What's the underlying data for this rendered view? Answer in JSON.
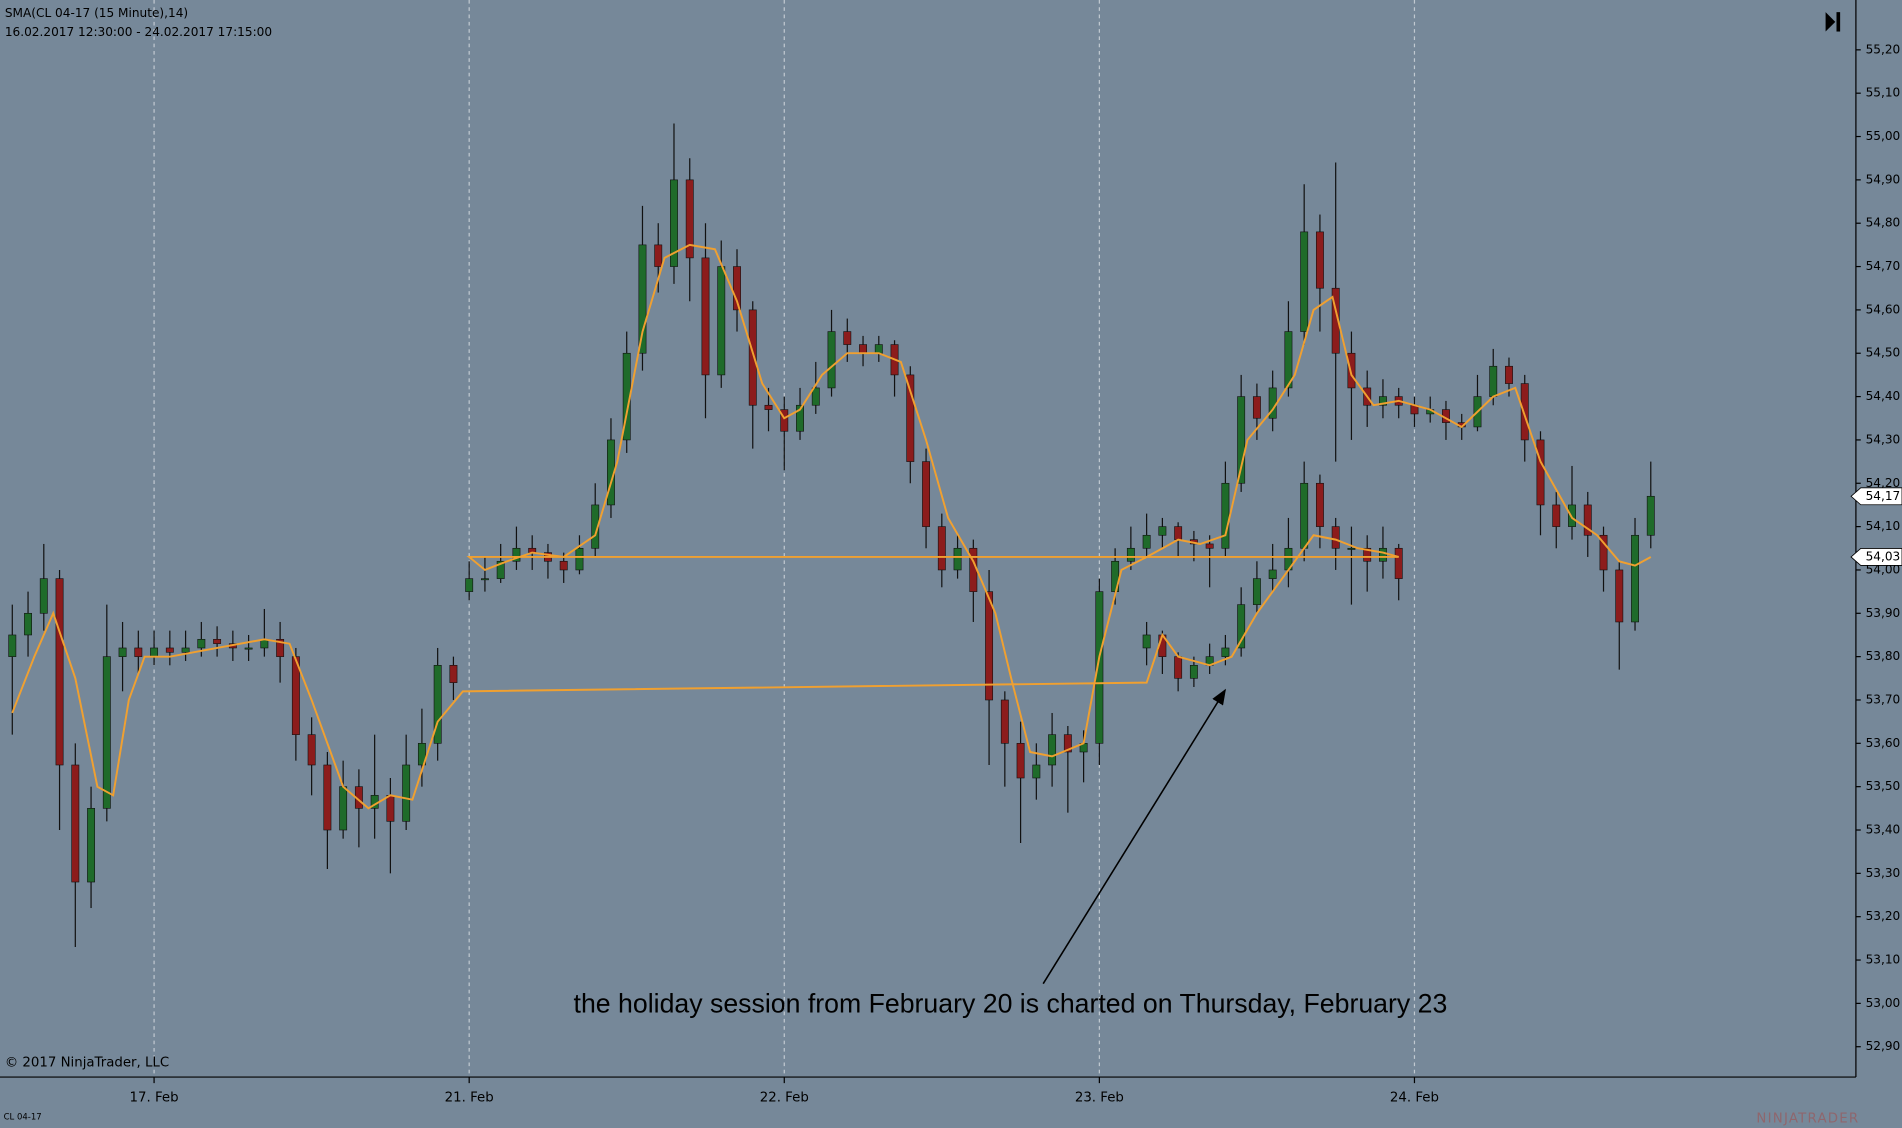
{
  "chart_data": {
    "type": "candlestick",
    "title": "SMA(CL 04-17 (15 Minute),14)",
    "subtitle": "16.02.2017 12:30:00 - 24.02.2017 17:15:00",
    "copyright": "© 2017 NinjaTrader, LLC",
    "instrument": "CL 04-17",
    "logo": "NINJATRADER",
    "annotation": "the holiday session from February 20 is charted on Thursday, February 23",
    "xlim": [
      0.511,
      6.401
    ],
    "ylim": [
      52.83,
      55.315
    ],
    "xticks": [
      {
        "value": 1,
        "label": "17. Feb"
      },
      {
        "value": 2,
        "label": "21. Feb"
      },
      {
        "value": 3,
        "label": "22. Feb"
      },
      {
        "value": 4,
        "label": "23. Feb"
      },
      {
        "value": 5,
        "label": "24. Feb"
      }
    ],
    "yticks": [
      {
        "value": 55.2,
        "label": "55,20"
      },
      {
        "value": 55.1,
        "label": "55,10"
      },
      {
        "value": 55.0,
        "label": "55,00"
      },
      {
        "value": 54.9,
        "label": "54,90"
      },
      {
        "value": 54.8,
        "label": "54,80"
      },
      {
        "value": 54.7,
        "label": "54,70"
      },
      {
        "value": 54.6,
        "label": "54,60"
      },
      {
        "value": 54.5,
        "label": "54,50"
      },
      {
        "value": 54.4,
        "label": "54,40"
      },
      {
        "value": 54.3,
        "label": "54,30"
      },
      {
        "value": 54.2,
        "label": "54,20"
      },
      {
        "value": 54.1,
        "label": "54,10"
      },
      {
        "value": 54.0,
        "label": "54,00"
      },
      {
        "value": 53.9,
        "label": "53,90"
      },
      {
        "value": 53.8,
        "label": "53,80"
      },
      {
        "value": 53.7,
        "label": "53,70"
      },
      {
        "value": 53.6,
        "label": "53,60"
      },
      {
        "value": 53.5,
        "label": "53,50"
      },
      {
        "value": 53.4,
        "label": "53,40"
      },
      {
        "value": 53.3,
        "label": "53,30"
      },
      {
        "value": 53.2,
        "label": "53,20"
      },
      {
        "value": 53.1,
        "label": "53,10"
      },
      {
        "value": 53.0,
        "label": "53,00"
      },
      {
        "value": 52.9,
        "label": "52,90"
      }
    ],
    "up_color": "#1f6b2a",
    "down_color": "#8c1c1c",
    "wick_color": "#111111",
    "series": [
      {
        "x": [
          0.55,
          0.6,
          0.65,
          0.7,
          0.75,
          0.8,
          0.85,
          0.9,
          0.95,
          1.0,
          1.05,
          1.1,
          1.15,
          1.2,
          1.25,
          1.3,
          1.35,
          1.4,
          1.45,
          1.5,
          1.55,
          1.6,
          1.65,
          1.7,
          1.75,
          1.8,
          1.85,
          1.9,
          1.95,
          2.0,
          2.05,
          2.1,
          2.15,
          2.2,
          2.25,
          2.3,
          2.35,
          2.4,
          2.45,
          2.5,
          2.55,
          2.6,
          2.65,
          2.7,
          2.75,
          2.8,
          2.85,
          2.9,
          2.95,
          3.0,
          3.05,
          3.1,
          3.15,
          3.2,
          3.25,
          3.3,
          3.35,
          3.4,
          3.45,
          3.5,
          3.55,
          3.6,
          3.65,
          3.7,
          3.75,
          3.8,
          3.85,
          3.9,
          3.95,
          4.0,
          4.05,
          4.1,
          4.15,
          4.2,
          4.25,
          4.3,
          4.35,
          4.4,
          4.45,
          4.5,
          4.55,
          4.6,
          4.65,
          4.7,
          4.75,
          4.8,
          4.85,
          4.9,
          4.95,
          5.0,
          5.05,
          5.1,
          5.15,
          5.2,
          5.25,
          5.3,
          5.35,
          5.4,
          5.45,
          5.5,
          5.55,
          5.6,
          5.65,
          5.7,
          5.75
        ],
        "open": [
          53.8,
          53.85,
          53.9,
          53.98,
          53.55,
          53.28,
          53.45,
          53.8,
          53.82,
          53.8,
          53.82,
          53.81,
          53.82,
          53.84,
          53.83,
          53.82,
          53.82,
          53.84,
          53.8,
          53.62,
          53.55,
          53.4,
          53.5,
          53.45,
          53.48,
          53.42,
          53.55,
          53.6,
          53.78,
          53.95,
          53.98,
          53.98,
          54.02,
          54.05,
          54.04,
          54.02,
          54.0,
          54.05,
          54.15,
          54.3,
          54.5,
          54.75,
          54.7,
          54.9,
          54.72,
          54.45,
          54.7,
          54.6,
          54.38,
          54.37,
          54.32,
          54.38,
          54.42,
          54.55,
          54.52,
          54.5,
          54.52,
          54.45,
          54.25,
          54.1,
          54.0,
          54.05,
          53.95,
          53.7,
          53.6,
          53.52,
          53.55,
          53.62,
          53.58,
          53.6,
          53.95,
          54.02,
          54.05,
          54.08,
          54.1,
          54.07,
          54.06,
          54.05,
          54.2,
          54.4,
          54.35,
          54.42,
          54.55,
          54.78,
          54.65,
          54.5,
          54.42,
          54.38,
          54.4,
          54.38,
          54.36,
          54.37,
          54.34,
          54.33,
          54.4,
          54.47,
          54.43,
          54.3,
          54.15,
          54.1,
          54.15,
          54.08,
          54.0,
          53.88,
          54.08
        ],
        "high": [
          53.92,
          53.95,
          54.06,
          54.0,
          53.6,
          53.5,
          53.92,
          53.88,
          53.86,
          53.86,
          53.86,
          53.86,
          53.88,
          53.87,
          53.86,
          53.85,
          53.91,
          53.88,
          53.82,
          53.66,
          53.58,
          53.56,
          53.54,
          53.62,
          53.52,
          53.62,
          53.68,
          53.82,
          53.8,
          54.02,
          54.03,
          54.06,
          54.1,
          54.08,
          54.06,
          54.04,
          54.08,
          54.2,
          54.35,
          54.55,
          54.84,
          54.8,
          55.03,
          54.95,
          54.8,
          54.76,
          54.74,
          54.62,
          54.42,
          54.4,
          54.42,
          54.48,
          54.6,
          54.58,
          54.54,
          54.54,
          54.53,
          54.47,
          54.28,
          54.13,
          54.08,
          54.07,
          54.0,
          53.72,
          53.65,
          53.6,
          53.67,
          53.64,
          53.63,
          53.98,
          54.05,
          54.1,
          54.13,
          54.12,
          54.11,
          54.09,
          54.08,
          54.25,
          54.45,
          54.43,
          54.46,
          54.62,
          54.89,
          54.82,
          54.94,
          54.55,
          54.46,
          54.44,
          54.42,
          54.4,
          54.4,
          54.39,
          54.36,
          54.45,
          54.51,
          54.49,
          54.45,
          54.32,
          54.18,
          54.24,
          54.18,
          54.1,
          54.02,
          54.12,
          54.25
        ],
        "low": [
          53.62,
          53.8,
          53.86,
          53.4,
          53.13,
          53.22,
          53.42,
          53.72,
          53.76,
          53.78,
          53.78,
          53.79,
          53.8,
          53.8,
          53.79,
          53.79,
          53.8,
          53.74,
          53.56,
          53.48,
          53.31,
          53.38,
          53.36,
          53.38,
          53.3,
          53.4,
          53.5,
          53.56,
          53.7,
          53.93,
          53.95,
          53.97,
          54.0,
          54.0,
          53.98,
          53.97,
          53.99,
          54.03,
          54.12,
          54.27,
          54.46,
          54.64,
          54.66,
          54.62,
          54.35,
          54.42,
          54.55,
          54.28,
          54.32,
          54.23,
          54.3,
          54.36,
          54.4,
          54.48,
          54.47,
          54.48,
          54.4,
          54.2,
          54.05,
          53.96,
          53.98,
          53.88,
          53.55,
          53.5,
          53.37,
          53.47,
          53.5,
          53.44,
          53.51,
          53.55,
          53.92,
          54.0,
          54.03,
          54.05,
          54.03,
          54.02,
          53.96,
          54.03,
          54.18,
          54.3,
          54.32,
          54.4,
          54.52,
          54.55,
          54.25,
          54.3,
          54.33,
          54.35,
          54.35,
          54.33,
          54.34,
          54.3,
          54.3,
          54.32,
          54.38,
          54.4,
          54.25,
          54.08,
          54.05,
          54.07,
          54.03,
          53.95,
          53.77,
          53.86,
          54.05
        ],
        "close": [
          53.85,
          53.9,
          53.98,
          53.55,
          53.28,
          53.45,
          53.8,
          53.82,
          53.8,
          53.82,
          53.81,
          53.82,
          53.84,
          53.83,
          53.82,
          53.82,
          53.84,
          53.8,
          53.62,
          53.55,
          53.4,
          53.5,
          53.45,
          53.48,
          53.42,
          53.55,
          53.6,
          53.78,
          53.74,
          53.98,
          53.98,
          54.02,
          54.05,
          54.04,
          54.02,
          54.0,
          54.05,
          54.15,
          54.3,
          54.5,
          54.75,
          54.7,
          54.9,
          54.72,
          54.45,
          54.7,
          54.6,
          54.38,
          54.37,
          54.32,
          54.38,
          54.42,
          54.55,
          54.52,
          54.5,
          54.52,
          54.45,
          54.25,
          54.1,
          54.0,
          54.05,
          53.95,
          53.7,
          53.6,
          53.52,
          53.55,
          53.62,
          53.58,
          53.6,
          53.95,
          54.02,
          54.05,
          54.08,
          54.1,
          54.07,
          54.06,
          54.05,
          54.2,
          54.4,
          54.35,
          54.42,
          54.55,
          54.78,
          54.65,
          54.5,
          54.42,
          54.38,
          54.4,
          54.38,
          54.36,
          54.37,
          54.34,
          54.33,
          54.4,
          54.47,
          54.43,
          54.3,
          54.15,
          54.1,
          54.15,
          54.08,
          54.0,
          53.88,
          54.08,
          54.17
        ]
      },
      {
        "x": [
          4.15,
          4.2,
          4.25,
          4.3,
          4.35,
          4.4,
          4.45,
          4.5,
          4.55,
          4.6,
          4.65,
          4.7,
          4.75,
          4.8,
          4.85,
          4.9,
          4.95
        ],
        "open": [
          53.82,
          53.85,
          53.8,
          53.75,
          53.78,
          53.8,
          53.82,
          53.92,
          53.98,
          54.0,
          54.05,
          54.2,
          54.1,
          54.05,
          54.05,
          54.02,
          54.05
        ],
        "high": [
          53.88,
          53.86,
          53.81,
          53.8,
          53.83,
          53.85,
          53.96,
          54.02,
          54.06,
          54.12,
          54.25,
          54.22,
          54.12,
          54.1,
          54.08,
          54.1,
          54.06
        ],
        "low": [
          53.78,
          53.76,
          53.72,
          53.73,
          53.76,
          53.78,
          53.8,
          53.9,
          53.95,
          53.96,
          54.02,
          54.05,
          54.0,
          53.92,
          53.95,
          53.98,
          53.93
        ],
        "close": [
          53.85,
          53.8,
          53.75,
          53.78,
          53.8,
          53.82,
          53.92,
          53.98,
          54.0,
          54.05,
          54.2,
          54.1,
          54.05,
          54.05,
          54.02,
          54.05,
          53.98
        ]
      }
    ],
    "sma": {
      "color": "#f0a030",
      "x": [
        0.55,
        0.62,
        0.68,
        0.75,
        0.82,
        0.87,
        0.92,
        0.97,
        1.05,
        1.2,
        1.35,
        1.43,
        1.5,
        1.6,
        1.68,
        1.75,
        1.82,
        1.9,
        1.98,
        4.15,
        4.2,
        4.25,
        4.35,
        4.42,
        4.5,
        4.6,
        4.68,
        4.75,
        4.82,
        4.9,
        4.95,
        2.0,
        2.05,
        2.12,
        2.2,
        2.3,
        2.4,
        2.47,
        2.55,
        2.62,
        2.7,
        2.78,
        2.85,
        2.93,
        3.0,
        3.05,
        3.12,
        3.2,
        3.3,
        3.37,
        3.45,
        3.52,
        3.6,
        3.67,
        3.72,
        3.78,
        3.85,
        3.95,
        4.0,
        4.07,
        4.15,
        4.25,
        4.32,
        4.4,
        4.47,
        4.55,
        4.62,
        4.68,
        4.74,
        4.8,
        4.87,
        4.95,
        5.05,
        5.15,
        5.25,
        5.32,
        5.4,
        5.5,
        5.58,
        5.65,
        5.7,
        5.75
      ],
      "values": [
        53.67,
        53.8,
        53.9,
        53.75,
        53.5,
        53.48,
        53.7,
        53.8,
        53.8,
        53.82,
        53.84,
        53.83,
        53.7,
        53.5,
        53.45,
        53.48,
        53.47,
        53.65,
        53.72,
        53.74,
        53.85,
        53.8,
        53.78,
        53.8,
        53.9,
        54.0,
        54.08,
        54.07,
        54.05,
        54.04,
        54.03,
        54.03,
        54.0,
        54.02,
        54.04,
        54.03,
        54.08,
        54.25,
        54.55,
        54.72,
        54.75,
        54.74,
        54.62,
        54.43,
        54.35,
        54.37,
        54.45,
        54.5,
        54.5,
        54.48,
        54.3,
        54.12,
        54.02,
        53.9,
        53.75,
        53.58,
        53.57,
        53.6,
        53.8,
        54.0,
        54.03,
        54.07,
        54.06,
        54.08,
        54.3,
        54.37,
        54.45,
        54.6,
        54.63,
        54.45,
        54.38,
        54.39,
        54.37,
        54.33,
        54.4,
        54.42,
        54.25,
        54.12,
        54.08,
        54.02,
        54.01,
        54.03
      ]
    },
    "price_markers": [
      {
        "value": 54.17,
        "label": "54,17"
      },
      {
        "value": 54.03,
        "label": "54,03"
      }
    ]
  }
}
